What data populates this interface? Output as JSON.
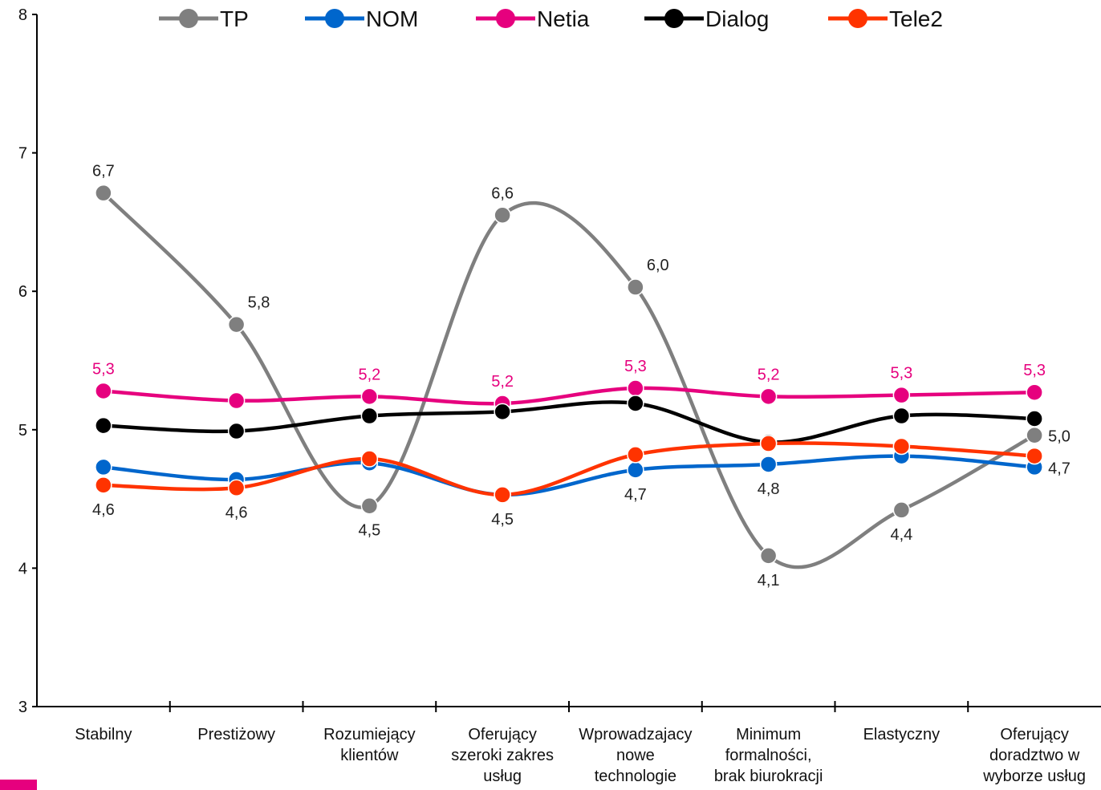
{
  "chart_data": {
    "type": "line",
    "title": "",
    "xlabel": "",
    "ylabel": "",
    "ylim": [
      3,
      8
    ],
    "yticks": [
      "3",
      "4",
      "5",
      "6",
      "7",
      "8"
    ],
    "legend_position": "top",
    "grid": false,
    "categories": [
      [
        "Stabilny"
      ],
      [
        "Prestiżowy"
      ],
      [
        "Rozumiejący",
        "klientów"
      ],
      [
        "Oferujący",
        "szeroki zakres",
        "usług"
      ],
      [
        "Wprowadzajacy",
        "nowe",
        "technologie"
      ],
      [
        "Minimum",
        "formalności,",
        "brak biurokracji"
      ],
      [
        "Elastyczny"
      ],
      [
        "Oferujący",
        "doradztwo w",
        "wyborze usług"
      ]
    ],
    "series": [
      {
        "name": "TP",
        "color": "#7f7f7f",
        "values": [
          6.71,
          5.76,
          4.45,
          6.55,
          6.03,
          4.09,
          4.42,
          4.96
        ],
        "labels": [
          "6,7",
          "5,8",
          "4,5",
          "6,6",
          "6,0",
          "4,1",
          "4,4",
          "5,0"
        ],
        "label_pos": [
          "above",
          "above-right",
          "below",
          "above",
          "above-right",
          "below",
          "below-right",
          "right"
        ]
      },
      {
        "name": "NOM",
        "color": "#0066cc",
        "values": [
          4.73,
          4.64,
          4.76,
          4.53,
          4.71,
          4.75,
          4.81,
          4.73
        ],
        "labels": [
          "",
          "",
          "",
          "",
          "4,7",
          "4,8",
          "",
          "4,7"
        ],
        "label_pos": [
          "",
          "",
          "",
          "",
          "below",
          "below",
          "",
          "right"
        ]
      },
      {
        "name": "Netia",
        "color": "#e6007e",
        "values": [
          5.28,
          5.21,
          5.24,
          5.19,
          5.3,
          5.24,
          5.25,
          5.27
        ],
        "labels": [
          "5,3",
          "",
          "5,2",
          "5,2",
          "5,3",
          "5,2",
          "5,3",
          "5,3"
        ],
        "label_pos": [
          "above",
          "",
          "above",
          "above",
          "above",
          "above",
          "above",
          "above"
        ]
      },
      {
        "name": "Dialog",
        "color": "#000000",
        "values": [
          5.03,
          4.99,
          5.1,
          5.13,
          5.19,
          4.91,
          5.1,
          5.08
        ],
        "labels": [
          "",
          "",
          "",
          "",
          "",
          "",
          "",
          ""
        ],
        "label_pos": [
          "",
          "",
          "",
          "",
          "",
          "",
          "",
          ""
        ]
      },
      {
        "name": "Tele2",
        "color": "#ff3300",
        "values": [
          4.6,
          4.58,
          4.79,
          4.53,
          4.82,
          4.9,
          4.88,
          4.81
        ],
        "labels": [
          "4,6",
          "4,6",
          "",
          "4,5",
          "",
          "",
          "",
          ""
        ],
        "label_pos": [
          "below",
          "below",
          "",
          "below",
          "",
          "",
          "",
          ""
        ]
      }
    ]
  }
}
